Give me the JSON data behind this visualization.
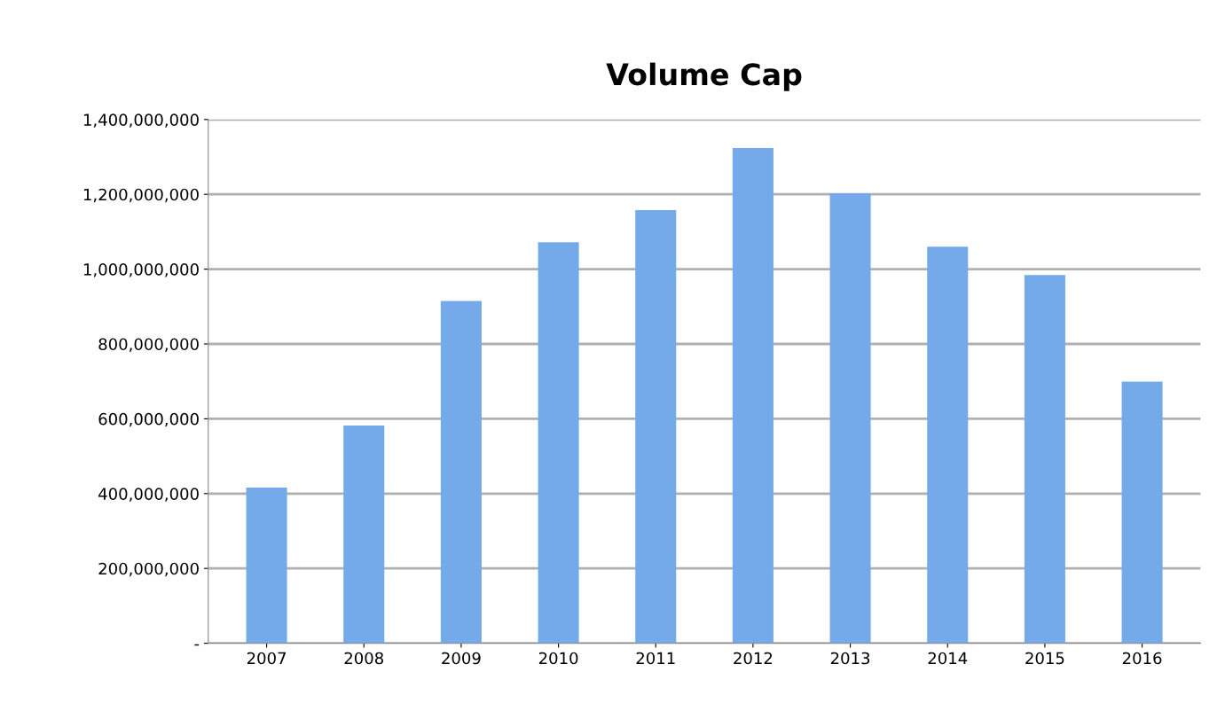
{
  "chart_data": {
    "type": "bar",
    "title": "Volume Cap",
    "categories": [
      "2007",
      "2008",
      "2009",
      "2010",
      "2011",
      "2012",
      "2013",
      "2014",
      "2015",
      "2016"
    ],
    "values": [
      416000000,
      582000000,
      915000000,
      1072000000,
      1158000000,
      1324000000,
      1203000000,
      1060000000,
      984000000,
      699000000
    ],
    "color": "#74aaea",
    "ylim": [
      0,
      1400000000
    ],
    "yticks": [
      {
        "value": 0,
        "label": "-"
      },
      {
        "value": 200000000,
        "label": "200,000,000"
      },
      {
        "value": 400000000,
        "label": "400,000,000"
      },
      {
        "value": 600000000,
        "label": "600,000,000"
      },
      {
        "value": 800000000,
        "label": "800,000,000"
      },
      {
        "value": 1000000000,
        "label": "1,000,000,000"
      },
      {
        "value": 1200000000,
        "label": "1,200,000,000"
      },
      {
        "value": 1400000000,
        "label": "1,400,000,000"
      }
    ],
    "grid": "y"
  }
}
